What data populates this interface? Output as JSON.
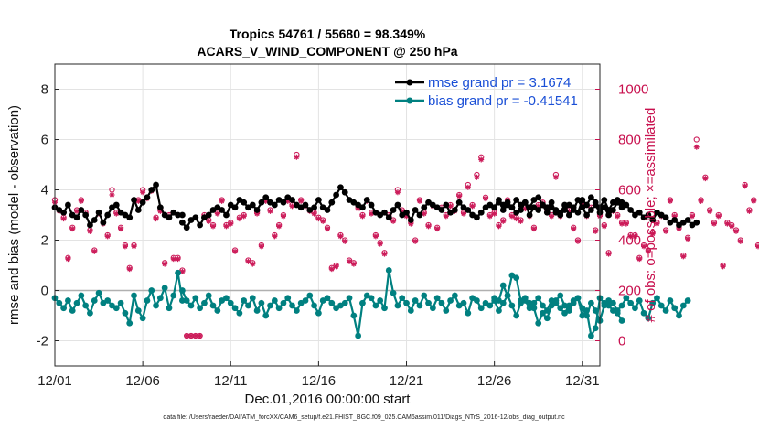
{
  "chart_data": {
    "type": "line",
    "title": "Tropics 54761 / 55680 = 98.349%",
    "subtitle": "ACARS_V_WIND_COMPONENT @ 250 hPa",
    "xlabel": "Dec.01,2016 00:00:00 start",
    "ylabel": "rmse and bias (model - observation)",
    "ylabel_right": "# of obs: o=possible; ×=assimilated",
    "x_ticks": [
      "12/01",
      "12/06",
      "12/11",
      "12/16",
      "12/21",
      "12/26",
      "12/31"
    ],
    "xlim": [
      1,
      32
    ],
    "ylim": [
      -3,
      9
    ],
    "yticks": [
      -2,
      0,
      2,
      4,
      6,
      8
    ],
    "ylim_right": [
      -100,
      1100
    ],
    "yticks_right": [
      0,
      200,
      400,
      600,
      800,
      1000
    ],
    "grid": true,
    "legend_position": "top-right",
    "footnote": "data file: /Users/raeder/DAI/ATM_forcXX/CAM6_setup/f.e21.FHIST_BGC.f09_025.CAM6assim.011/Diags_NTrS_2016-12/obs_diag_output.nc",
    "colors": {
      "rmse": "#000000",
      "bias": "#008080",
      "obs": "#cc1c5a",
      "legend_text": "#1a4fd6",
      "zero_line": "#b0b0b0"
    },
    "series": [
      {
        "name": "rmse grand pr = 3.1674",
        "color": "#000000",
        "marker": "circle",
        "segments": [
          {
            "x_start": 1.0,
            "x_step": 0.25,
            "values": [
              3.3,
              3.2,
              3.1,
              3.4,
              3.0,
              2.9,
              3.2,
              3.0,
              2.6,
              2.8,
              3.1,
              2.7,
              3.0,
              3.3,
              3.4,
              3.1,
              3.0,
              2.9,
              3.6,
              3.2,
              3.5,
              3.7,
              4.0,
              4.2,
              3.3,
              3.0,
              2.9,
              3.1,
              3.0,
              3.0
            ]
          },
          {
            "x_start": 8.25,
            "x_step": 0.25,
            "values": [
              2.7,
              2.5,
              2.8,
              2.9,
              2.6,
              2.9,
              3.0,
              3.2,
              3.3,
              3.2,
              3.0,
              3.4,
              3.3,
              3.6,
              3.5,
              3.3,
              3.4,
              3.2,
              3.5,
              3.7,
              3.5,
              3.4,
              3.6,
              3.5,
              3.7,
              3.6,
              3.4,
              3.3,
              3.4,
              3.2,
              3.3,
              3.6,
              3.3,
              3.2,
              3.5,
              3.8,
              4.1,
              3.9,
              3.6,
              3.5,
              3.4,
              3.3,
              3.6,
              3.4,
              3.1,
              3.0,
              3.1,
              2.9,
              3.2,
              3.4,
              3.0,
              3.1,
              2.8,
              3.2,
              3.0,
              3.3,
              3.5,
              3.4,
              3.3,
              3.2,
              3.4,
              3.1,
              3.2,
              3.5,
              3.3,
              3.2,
              3.0,
              2.9,
              3.1,
              3.3,
              3.4,
              3.3,
              3.6,
              3.2,
              3.4,
              3.3,
              3.1,
              3.2,
              3.5,
              3.0,
              3.3,
              3.2,
              3.4,
              3.1,
              3.3,
              3.2,
              3.1,
              3.4,
              3.0,
              3.2,
              3.6,
              3.3,
              3.0,
              3.2,
              3.4,
              3.1,
              3.3,
              3.0,
              3.2,
              3.5,
              3.3,
              3.4,
              3.2,
              3.0,
              3.1,
              2.9,
              3.0,
              2.8,
              3.1,
              3.0,
              2.9,
              2.7,
              2.8,
              2.6,
              2.7,
              2.8,
              2.6,
              2.7
            ]
          },
          {
            "x_start": 26.0,
            "x_step": 0.25,
            "values": [
              3.3,
              3.5,
              3.4,
              3.5,
              3.3,
              3.6,
              3.4,
              3.5,
              3.3,
              3.6,
              3.7,
              3.4,
              3.3,
              3.5,
              3.1,
              3.0,
              3.2,
              3.4,
              3.3,
              3.1,
              3.6,
              3.4,
              3.7,
              3.5,
              3.3,
              3.6,
              3.2,
              3.5,
              3.6,
              3.5
            ]
          }
        ]
      },
      {
        "name": "bias grand pr = -0.41541",
        "color": "#008080",
        "marker": "circle",
        "segments": [
          {
            "x_start": 1.0,
            "x_step": 0.25,
            "values": [
              -0.3,
              -0.5,
              -0.7,
              -0.4,
              -0.8,
              -0.5,
              -0.2,
              -0.6,
              -0.9,
              -0.4,
              -0.1,
              -0.5,
              -0.4,
              -0.6,
              -0.7,
              -0.5,
              -0.9,
              -1.3,
              -0.2,
              -0.8,
              -1.1,
              -0.4,
              0.0,
              -0.6,
              -0.3,
              0.1,
              -0.7,
              -0.2,
              0.7,
              -0.4
            ]
          },
          {
            "x_start": 8.25,
            "x_step": 0.25,
            "values": [
              0.0,
              -0.4,
              -0.6,
              -0.3,
              -0.7,
              -0.5,
              -0.2,
              -0.6,
              -0.8,
              -0.4,
              -0.3,
              -0.5,
              -0.7,
              -0.9,
              -0.4,
              -0.6,
              -0.3,
              -0.8,
              -0.5,
              -1.0,
              -0.6,
              -0.4,
              -0.7,
              -0.5,
              -0.3,
              -0.6,
              -0.8,
              -0.5,
              -0.4,
              -0.2,
              -0.6,
              -0.9,
              -0.4,
              -0.3,
              -0.5,
              -0.7,
              -0.6,
              -0.5,
              -0.3,
              -1.0,
              -1.8,
              -0.5,
              -0.2,
              -0.3,
              -0.6,
              -0.4,
              -0.7,
              0.8,
              -0.1,
              -0.6,
              -0.3,
              -0.5,
              -0.8,
              -0.4,
              -0.6,
              -0.2,
              -0.5,
              -0.7,
              -0.3,
              -0.5,
              -0.8,
              -0.4,
              -0.2,
              -0.6,
              -0.5,
              -0.9,
              -0.3,
              -0.4,
              -0.7,
              -0.5,
              -0.6,
              -0.4,
              -0.8,
              -0.5,
              -0.2,
              -0.6,
              -1.0,
              -0.5,
              -0.4,
              -0.7,
              -0.5,
              -0.3,
              -0.6,
              -0.8,
              -0.4,
              -0.5,
              -0.7,
              -0.9,
              -0.6,
              -0.4,
              -0.3,
              -0.7,
              -1.0,
              -0.5,
              -0.8,
              -1.2,
              -0.6,
              -0.4,
              -0.5,
              -0.8,
              -0.6,
              -0.3,
              -0.5,
              -0.7,
              -0.4,
              -0.9,
              -1.1,
              -0.5,
              -0.3,
              -0.6,
              -0.8,
              -0.4,
              -0.7,
              -1.0,
              -0.6,
              -0.4
            ]
          },
          {
            "x_start": 26.0,
            "x_step": 0.25,
            "values": [
              -0.3,
              -0.4,
              0.2,
              -0.2,
              0.6,
              0.5,
              -0.4,
              -0.3,
              -0.5,
              -0.7,
              -1.3,
              -0.9,
              -1.1,
              -0.6,
              -0.4,
              -0.2,
              -0.6,
              -0.8,
              -0.5,
              -0.3,
              -1.0,
              -0.8,
              -1.8,
              -1.5,
              -0.3,
              -0.5,
              -0.6,
              -0.8,
              -0.9,
              -1.2
            ]
          }
        ]
      },
      {
        "name": "obs possible",
        "color": "#cc1c5a",
        "marker": "open-circle",
        "x_start": 1.0,
        "x_step": 0.25,
        "values": [
          560,
          520,
          490,
          330,
          450,
          520,
          560,
          510,
          440,
          360,
          510,
          470,
          420,
          600,
          510,
          450,
          380,
          290,
          380,
          560,
          600,
          570,
          600,
          490,
          520,
          310,
          500,
          330,
          330,
          280,
          20,
          20,
          20,
          20,
          500,
          480,
          460,
          510,
          560,
          460,
          470,
          360,
          490,
          500,
          320,
          310,
          510,
          380,
          560,
          520,
          420,
          460,
          500,
          560,
          540,
          740,
          560,
          540,
          520,
          510,
          490,
          480,
          450,
          290,
          300,
          420,
          400,
          320,
          310,
          530,
          500,
          560,
          510,
          420,
          390,
          350,
          500,
          480,
          600,
          520,
          500,
          470,
          400,
          560,
          510,
          460,
          540,
          450,
          530,
          500,
          540,
          520,
          580,
          510,
          620,
          540,
          660,
          730,
          570,
          500,
          510,
          460,
          480,
          560,
          500,
          490,
          480,
          530,
          500,
          450,
          540,
          550,
          520,
          500,
          660,
          500,
          540,
          520,
          450,
          400,
          550,
          500,
          530,
          440,
          500,
          460,
          350,
          520,
          500,
          470,
          470,
          420,
          420,
          330,
          380,
          360,
          430,
          470,
          500,
          440,
          560,
          500,
          450,
          340,
          410,
          500,
          800,
          560,
          650,
          520,
          470,
          500,
          300,
          470,
          460,
          440,
          400,
          620,
          520,
          560,
          380,
          350,
          480,
          560,
          540,
          520,
          500,
          300,
          570,
          560,
          490,
          510,
          530,
          360,
          470,
          440,
          420,
          330,
          470,
          380,
          400,
          480,
          480,
          550,
          530,
          580,
          500,
          480,
          410,
          450,
          540,
          640,
          450,
          400,
          520,
          540,
          360,
          400,
          520,
          500,
          480,
          430,
          520,
          610,
          560,
          530,
          400,
          420,
          300,
          330,
          530,
          500,
          440,
          340,
          610,
          540,
          400,
          360,
          480,
          810,
          760,
          530,
          650,
          560,
          420,
          400,
          500,
          510,
          420,
          480,
          300,
          540,
          380,
          420,
          500,
          520,
          440,
          490,
          380,
          480,
          540,
          620,
          470,
          440,
          500,
          380,
          330,
          560,
          610,
          520,
          480,
          0
        ]
      },
      {
        "name": "obs assimilated",
        "color": "#cc1c5a",
        "marker": "asterisk",
        "x_start": 1.0,
        "x_step": 0.25,
        "values": [
          550,
          515,
          485,
          325,
          445,
          515,
          555,
          505,
          435,
          355,
          505,
          465,
          415,
          580,
          505,
          445,
          375,
          285,
          375,
          555,
          590,
          565,
          595,
          485,
          515,
          305,
          495,
          325,
          325,
          275,
          20,
          20,
          20,
          20,
          495,
          475,
          455,
          505,
          555,
          455,
          465,
          355,
          485,
          495,
          315,
          305,
          505,
          375,
          555,
          515,
          415,
          455,
          495,
          555,
          535,
          730,
          555,
          535,
          515,
          505,
          485,
          475,
          445,
          285,
          295,
          415,
          395,
          315,
          305,
          525,
          495,
          555,
          505,
          415,
          385,
          345,
          495,
          475,
          590,
          515,
          495,
          465,
          395,
          555,
          505,
          455,
          535,
          445,
          525,
          495,
          535,
          515,
          575,
          505,
          610,
          535,
          650,
          720,
          565,
          495,
          505,
          455,
          475,
          555,
          495,
          485,
          475,
          525,
          495,
          445,
          535,
          545,
          515,
          495,
          650,
          495,
          535,
          515,
          445,
          395,
          545,
          495,
          525,
          435,
          495,
          455,
          345,
          515,
          495,
          465,
          465,
          415,
          415,
          325,
          375,
          355,
          425,
          465,
          495,
          435,
          555,
          495,
          445,
          335,
          405,
          495,
          770,
          555,
          645,
          515,
          465,
          495,
          295,
          465,
          455,
          435,
          395,
          615,
          515,
          555,
          375,
          345,
          475,
          555,
          535,
          515,
          495,
          295,
          565,
          555,
          485,
          505,
          525,
          355,
          465,
          435,
          415,
          325,
          465,
          375,
          395,
          475,
          475,
          545,
          525,
          575,
          495,
          475,
          405,
          445,
          535,
          630,
          445,
          395,
          515,
          535,
          355,
          395,
          515,
          495,
          475,
          425,
          515,
          600,
          555,
          525,
          395,
          415,
          295,
          325,
          525,
          495,
          435,
          335,
          600,
          535,
          395,
          355,
          475,
          800,
          750,
          525,
          640,
          555,
          415,
          395,
          495,
          505,
          415,
          475,
          295,
          535,
          375,
          415,
          495,
          515,
          435,
          485,
          375,
          475,
          535,
          615,
          465,
          435,
          495,
          375,
          325,
          555,
          600,
          515,
          475,
          0
        ]
      }
    ]
  }
}
